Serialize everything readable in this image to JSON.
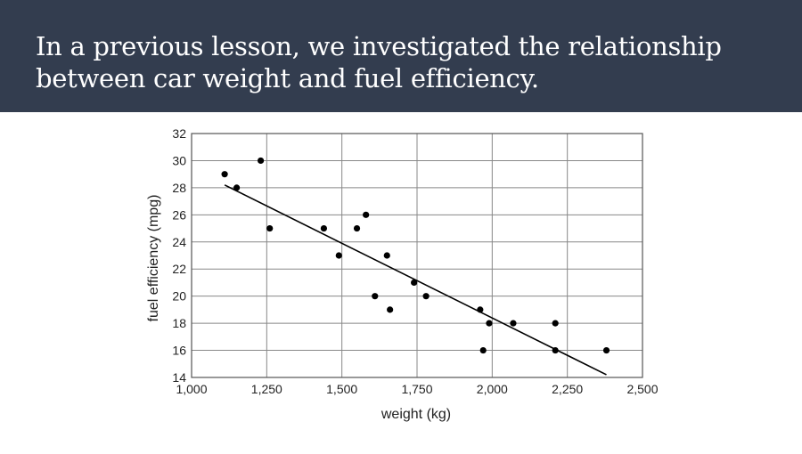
{
  "slide": {
    "title": "In a previous lesson, we investigated the relationship between car weight and fuel efficiency."
  },
  "colors": {
    "banner": "#333d4f",
    "title_text": "#ffffff",
    "grid": "#888888",
    "points": "#000000",
    "trendline": "#000000"
  },
  "chart_data": {
    "type": "scatter",
    "title": "",
    "xlabel": "weight (kg)",
    "ylabel": "fuel efficiency (mpg)",
    "xlim": [
      1000,
      2500
    ],
    "ylim": [
      14,
      32
    ],
    "x_ticks": [
      1000,
      1250,
      1500,
      1750,
      2000,
      2250,
      2500
    ],
    "x_tick_labels": [
      "1,000",
      "1,250",
      "1,500",
      "1,750",
      "2,000",
      "2,250",
      "2,500"
    ],
    "y_ticks": [
      14,
      16,
      18,
      20,
      22,
      24,
      26,
      28,
      30,
      32
    ],
    "y_tick_labels": [
      "14",
      "16",
      "18",
      "20",
      "22",
      "24",
      "26",
      "28",
      "30",
      "32"
    ],
    "grid": true,
    "points": [
      {
        "x": 1110,
        "y": 29
      },
      {
        "x": 1150,
        "y": 28
      },
      {
        "x": 1230,
        "y": 30
      },
      {
        "x": 1260,
        "y": 25
      },
      {
        "x": 1440,
        "y": 25
      },
      {
        "x": 1490,
        "y": 23
      },
      {
        "x": 1550,
        "y": 25
      },
      {
        "x": 1580,
        "y": 26
      },
      {
        "x": 1610,
        "y": 20
      },
      {
        "x": 1650,
        "y": 23
      },
      {
        "x": 1660,
        "y": 19
      },
      {
        "x": 1740,
        "y": 21
      },
      {
        "x": 1780,
        "y": 20
      },
      {
        "x": 1960,
        "y": 19
      },
      {
        "x": 1970,
        "y": 16
      },
      {
        "x": 1990,
        "y": 18
      },
      {
        "x": 2070,
        "y": 18
      },
      {
        "x": 2210,
        "y": 16
      },
      {
        "x": 2210,
        "y": 18
      },
      {
        "x": 2380,
        "y": 16
      }
    ],
    "trendline": {
      "x": [
        1110,
        2380
      ],
      "y": [
        28.2,
        14.2
      ]
    }
  }
}
